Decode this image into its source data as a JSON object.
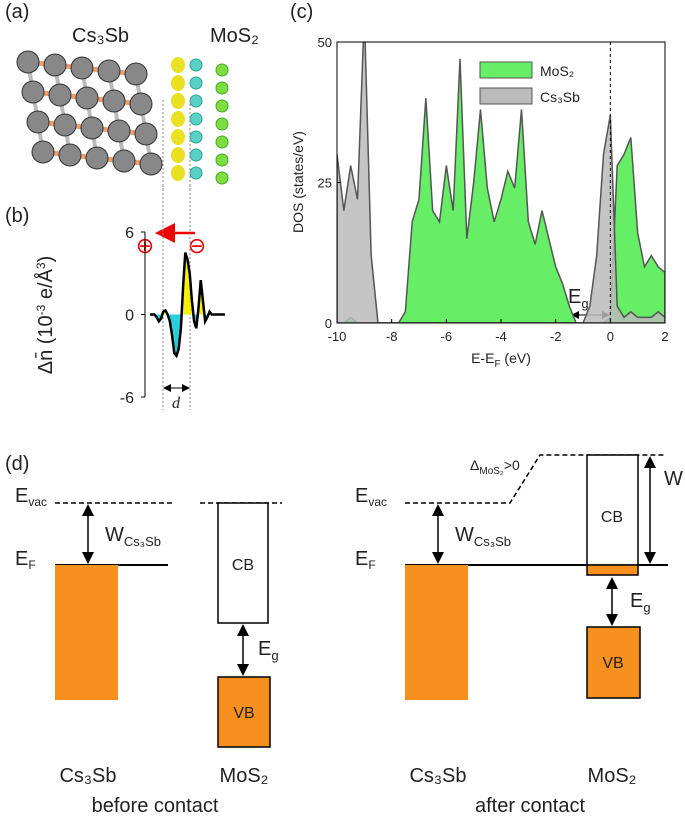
{
  "panels": {
    "a": "(a)",
    "b": "(b)",
    "c": "(c)",
    "d": "(d)"
  },
  "structure": {
    "left": "Cs₃Sb",
    "right": "MoS₂"
  },
  "chart_data": [
    {
      "type": "line",
      "ylabel": {
        "main": "Δn̄",
        "p1": " (10",
        "e1": "-3",
        "p2": " e/Å",
        "e2": "3",
        "p3": ")"
      },
      "ylim": [
        -6,
        6
      ],
      "yticks": [
        -6,
        0,
        6
      ],
      "symbols": [
        "⊕",
        "⊖"
      ],
      "dlabel": "d",
      "values": [
        0,
        0,
        0,
        -0.2,
        -0.5,
        -0.3,
        0.2,
        0.3,
        0,
        -0.5,
        -1.5,
        -2.8,
        -3,
        -2.5,
        -1,
        2,
        4.5,
        4,
        3,
        1,
        -0.5,
        -1,
        0.5,
        2.5,
        1,
        -0.5,
        -0.2,
        0.2,
        0,
        0,
        0,
        0,
        0,
        0,
        0
      ],
      "pos_color": "#f5f000",
      "neg_color": "#22ccdd"
    },
    {
      "type": "area",
      "xlabel": {
        "main": "E-E",
        "sub": "F",
        "rest": " (eV)"
      },
      "ylabel": "DOS (states/eV)",
      "xlim": [
        -10,
        2
      ],
      "xticks": [
        -10,
        -8,
        -6,
        -4,
        -2,
        0,
        2
      ],
      "ylim": [
        0,
        50
      ],
      "yticks": [
        0,
        25,
        50
      ],
      "vline": 0,
      "annotation": {
        "main": "E",
        "sub": "g"
      },
      "legend": "upper center",
      "x": [
        -10,
        -9.75,
        -9.5,
        -9.25,
        -9,
        -8.75,
        -8.5,
        -8.25,
        -8,
        -7.75,
        -7.5,
        -7.25,
        -7,
        -6.75,
        -6.5,
        -6.25,
        -6,
        -5.75,
        -5.5,
        -5.25,
        -5,
        -4.75,
        -4.5,
        -4.25,
        -4,
        -3.75,
        -3.5,
        -3.25,
        -3,
        -2.75,
        -2.5,
        -2.25,
        -2,
        -1.75,
        -1.5,
        -1.25,
        -1,
        -0.75,
        -0.5,
        -0.25,
        0,
        0.25,
        0.5,
        0.75,
        1,
        1.25,
        1.5,
        1.75,
        2
      ],
      "series": [
        {
          "name": "MoS₂",
          "color": "#66ee66",
          "values": [
            0,
            0,
            1,
            0,
            0,
            0,
            0,
            0,
            0,
            0,
            2,
            18,
            22,
            40,
            20,
            18,
            28,
            20,
            47,
            15,
            25,
            38,
            24,
            18,
            22,
            27,
            24,
            38,
            18,
            14,
            20,
            15,
            10,
            7,
            3,
            0,
            0,
            0,
            0,
            0,
            1,
            28,
            30,
            33,
            16,
            10,
            12,
            10,
            9
          ]
        },
        {
          "name": "Cs₃Sb",
          "color": "#bbbbbb",
          "values": [
            30,
            20,
            28,
            22,
            55,
            12,
            0,
            0,
            0,
            0,
            0,
            0,
            0,
            0,
            0,
            0,
            0,
            0,
            0,
            0,
            0,
            0,
            0,
            0,
            0,
            0,
            0,
            0,
            0,
            0,
            0,
            0,
            0,
            0,
            0,
            0,
            0,
            3,
            12,
            30,
            37,
            3,
            1,
            2,
            1,
            1,
            1,
            2,
            1
          ]
        }
      ]
    }
  ],
  "diagram": {
    "evac": {
      "main": "E",
      "sub": "vac"
    },
    "ef": {
      "main": "E",
      "sub": "F"
    },
    "w": {
      "main": "W",
      "sub": "Cs₃Sb"
    },
    "cb": "CB",
    "vb": "VB",
    "eg": {
      "main": "E",
      "sub": "g"
    },
    "metal": "Cs₃Sb",
    "semi": "MoS₂",
    "before": "before contact",
    "after": "after contact",
    "delta": {
      "main": "Δ",
      "sub": "MoS₂",
      "rest": ">0"
    },
    "wbig": "W"
  }
}
